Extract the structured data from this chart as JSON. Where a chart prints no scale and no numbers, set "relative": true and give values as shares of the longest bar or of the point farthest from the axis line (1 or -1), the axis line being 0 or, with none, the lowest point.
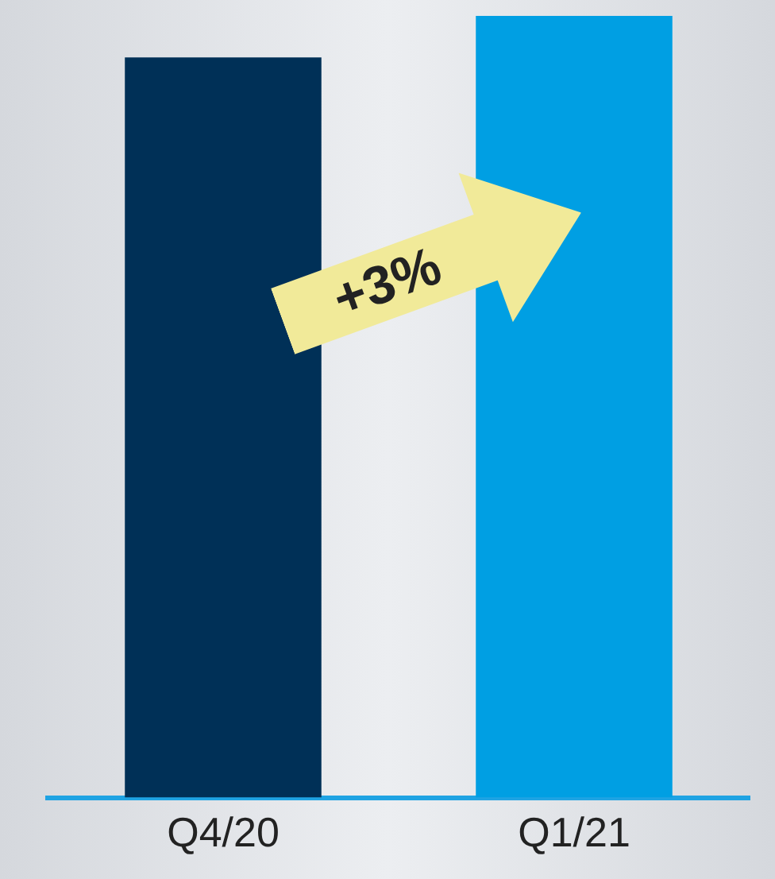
{
  "chart_data": {
    "type": "bar",
    "categories": [
      "Q4/20",
      "Q1/21"
    ],
    "values": [
      0.947,
      1
    ],
    "colors": [
      "#003057",
      "#009fe3"
    ],
    "relative": true,
    "annotations": [
      "+3%"
    ]
  }
}
